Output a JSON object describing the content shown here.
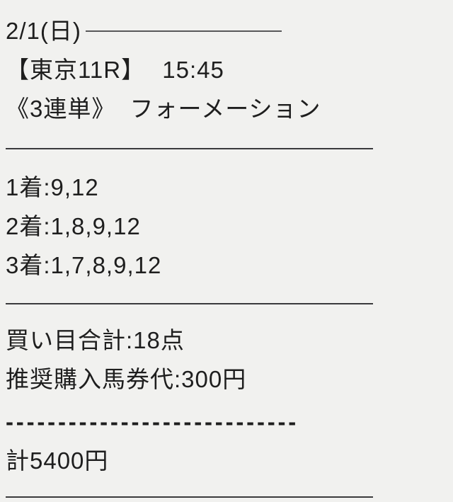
{
  "header": {
    "date": "2/1(日)",
    "race": "【東京11R】",
    "time": "15:45",
    "bet_type": "《3連単》",
    "method": "フォーメーション"
  },
  "formation": {
    "rows": [
      {
        "rank": "1着",
        "colon": ":",
        "horses": "9,12"
      },
      {
        "rank": "2着",
        "colon": ":",
        "horses": "1,8,9,12"
      },
      {
        "rank": "3着",
        "colon": ":",
        "horses": "1,7,8,9,12"
      }
    ]
  },
  "summary": {
    "lines": [
      {
        "label": "買い目合計",
        "colon": ":",
        "value": "18点"
      },
      {
        "label": "推奨購入馬券代",
        "colon": ":",
        "value": "300円"
      }
    ],
    "dashed_divider": "----------------------------",
    "total": {
      "label": "計",
      "value": "5400円"
    }
  },
  "colors": {
    "background": "#f1f1ef",
    "text": "#1e1e1e",
    "date_line": "#58585a",
    "divider": "#3a3a3c"
  }
}
